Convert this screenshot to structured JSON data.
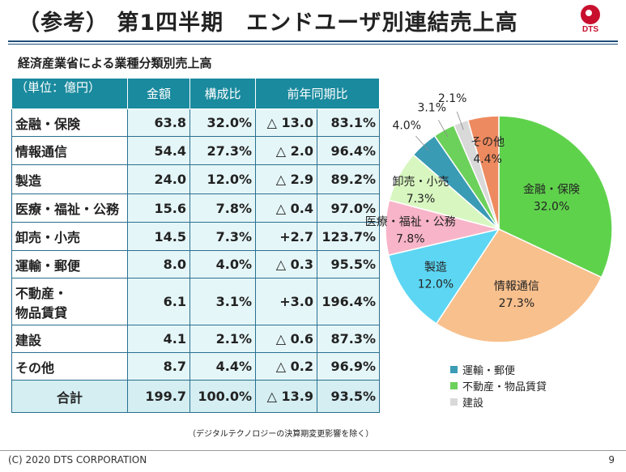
{
  "header": {
    "title": "（参考） 第1四半期　エンドユーザ別連結売上高",
    "logo_text": "DTS"
  },
  "subtitle": "経済産業省による業種分類別売上高",
  "table": {
    "unit_label": "（単位：億円）",
    "headers": [
      "金額",
      "構成比",
      "前年同期比"
    ],
    "rows": [
      {
        "label": "金融・保険",
        "amount": "63.8",
        "share": "32.0%",
        "change": "△ 13.0",
        "yoy": "83.1%"
      },
      {
        "label": "情報通信",
        "amount": "54.4",
        "share": "27.3%",
        "change": "△ 2.0",
        "yoy": "96.4%"
      },
      {
        "label": "製造",
        "amount": "24.0",
        "share": "12.0%",
        "change": "△ 2.9",
        "yoy": "89.2%"
      },
      {
        "label": "医療・福祉・公務",
        "amount": "15.6",
        "share": "7.8%",
        "change": "△ 0.4",
        "yoy": "97.0%"
      },
      {
        "label": "卸売・小売",
        "amount": "14.5",
        "share": "7.3%",
        "change": "+2.7",
        "yoy": "123.7%"
      },
      {
        "label": "運輸・郵便",
        "amount": "8.0",
        "share": "4.0%",
        "change": "△ 0.3",
        "yoy": "95.5%"
      },
      {
        "label": "不動産・\n物品賃貸",
        "amount": "6.1",
        "share": "3.1%",
        "change": "+3.0",
        "yoy": "196.4%"
      },
      {
        "label": "建設",
        "amount": "4.1",
        "share": "2.1%",
        "change": "△ 0.6",
        "yoy": "87.3%"
      },
      {
        "label": "その他",
        "amount": "8.7",
        "share": "4.4%",
        "change": "△ 0.2",
        "yoy": "96.9%"
      }
    ],
    "total": {
      "label": "合計",
      "amount": "199.7",
      "share": "100.0%",
      "change": "△ 13.9",
      "yoy": "93.5%"
    }
  },
  "note": "（デジタルテクノロジーの決算期変更影響を除く）",
  "chart_data": {
    "type": "pie",
    "start": "12 o'clock, clockwise",
    "slices": [
      {
        "name": "金融・保険",
        "value": 32.0,
        "color": "#5fd24c",
        "label": "金融・保険",
        "pct": "32.0%"
      },
      {
        "name": "情報通信",
        "value": 27.3,
        "color": "#f8c08d",
        "label": "情報通信",
        "pct": "27.3%"
      },
      {
        "name": "製造",
        "value": 12.0,
        "color": "#5cd6f3",
        "label": "製造",
        "pct": "12.0%"
      },
      {
        "name": "医療・福祉・公務",
        "value": 7.8,
        "color": "#f8b4c8",
        "label": "医療・福祉・公務",
        "pct": "7.8%"
      },
      {
        "name": "卸売・小売",
        "value": 7.3,
        "color": "#d8f7c0",
        "label": "卸売・小売",
        "pct": "7.3%"
      },
      {
        "name": "運輸・郵便",
        "value": 4.0,
        "color": "#3a9bb5",
        "label": "",
        "pct": "4.0%"
      },
      {
        "name": "不動産・物品賃貸",
        "value": 3.1,
        "color": "#6cd15a",
        "label": "",
        "pct": "3.1%"
      },
      {
        "name": "建設",
        "value": 2.1,
        "color": "#d9d9d9",
        "label": "",
        "pct": "2.1%"
      },
      {
        "name": "その他",
        "value": 4.4,
        "color": "#ee8a5f",
        "label": "その他",
        "pct": "4.4%"
      }
    ],
    "legend": [
      {
        "name": "運輸・郵便",
        "color": "#3a9bb5"
      },
      {
        "name": "不動産・物品賃貸",
        "color": "#6cd15a"
      },
      {
        "name": "建設",
        "color": "#d9d9d9"
      }
    ],
    "legend_position": "bottom-right"
  },
  "footer": {
    "copyright": "(C) 2020 DTS CORPORATION",
    "page": "9"
  }
}
